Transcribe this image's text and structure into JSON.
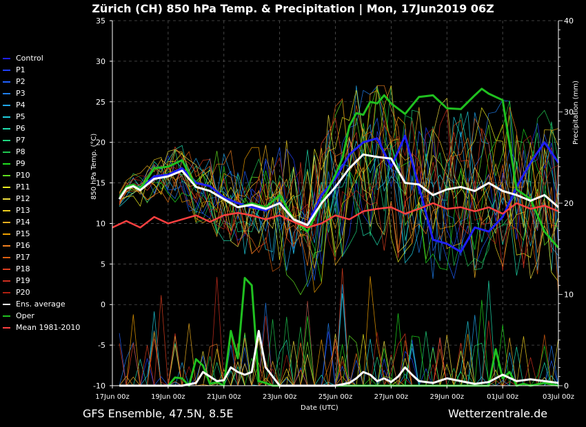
{
  "title": "Zürich  (CH)  850 hPa Temp. & Precipitation | Mon, 17Jun2019 06Z",
  "footer_left": "GFS Ensemble, 47.5N, 8.5E",
  "footer_right": "Wetterzentrale.de",
  "chart_data": {
    "type": "line",
    "xlabel": "Date (UTC)",
    "ylabel_left": "850 hPa Temp. (°C)",
    "ylabel_right": "Precipitation (mm)",
    "xticks": [
      "17Jun 00z",
      "19Jun 00z",
      "21Jun 00z",
      "23Jun 00z",
      "25Jun 00z",
      "27Jun 00z",
      "29Jun 00z",
      "01Jul 00z",
      "03Jul 00z"
    ],
    "x_days_range": [
      0,
      16
    ],
    "ylim_left": [
      -10,
      35
    ],
    "yticks_left": [
      -10,
      -5,
      0,
      5,
      10,
      15,
      20,
      25,
      30,
      35
    ],
    "ylim_right": [
      0,
      40
    ],
    "yticks_right": [
      0,
      10,
      20,
      30,
      40
    ],
    "grid": true,
    "legend_position": "left",
    "legend": [
      {
        "name": "Control",
        "color": "#2020ff"
      },
      {
        "name": "P1",
        "color": "#2040ff"
      },
      {
        "name": "P2",
        "color": "#2060ff"
      },
      {
        "name": "P3",
        "color": "#2080f0"
      },
      {
        "name": "P4",
        "color": "#20a8f0"
      },
      {
        "name": "P5",
        "color": "#20d0e0"
      },
      {
        "name": "P6",
        "color": "#20e0b0"
      },
      {
        "name": "P7",
        "color": "#20d880"
      },
      {
        "name": "P8",
        "color": "#20c850"
      },
      {
        "name": "P9",
        "color": "#20e020"
      },
      {
        "name": "P10",
        "color": "#60e020"
      },
      {
        "name": "P11",
        "color": "#f0f020"
      },
      {
        "name": "P12",
        "color": "#f0e040"
      },
      {
        "name": "P13",
        "color": "#f0d020"
      },
      {
        "name": "P14",
        "color": "#f0b020"
      },
      {
        "name": "P15",
        "color": "#f0a000"
      },
      {
        "name": "P16",
        "color": "#f08020"
      },
      {
        "name": "P17",
        "color": "#e06010"
      },
      {
        "name": "P18",
        "color": "#e04020"
      },
      {
        "name": "P19",
        "color": "#d03020"
      },
      {
        "name": "P20",
        "color": "#b02010"
      },
      {
        "name": "Ens. average",
        "color": "#ffffff"
      },
      {
        "name": "Oper",
        "color": "#20c020"
      },
      {
        "name": "Mean 1981-2010",
        "color": "#ff4040"
      }
    ],
    "series_temp": [
      {
        "name": "Control",
        "color": "#2020ff",
        "width": 3,
        "x": [
          0.25,
          0.5,
          0.75,
          1,
          1.5,
          2,
          2.5,
          3,
          3.5,
          4,
          4.5,
          5,
          5.5,
          6,
          6.5,
          7,
          7.5,
          8,
          8.5,
          9,
          9.5,
          10,
          10.5,
          11,
          11.5,
          12,
          12.5,
          13,
          13.5,
          14,
          14.5,
          15,
          15.5,
          16
        ],
        "y": [
          13,
          14.5,
          14.8,
          14.2,
          15.8,
          16,
          16.8,
          15,
          14.6,
          13.2,
          12.5,
          12,
          11.6,
          12.6,
          10.5,
          9.8,
          13.5,
          15.5,
          18.5,
          20,
          20.5,
          17,
          20.8,
          14.5,
          8,
          7.5,
          6.5,
          9.5,
          9,
          10.8,
          14.5,
          17.5,
          20,
          17.5
        ]
      },
      {
        "name": "Oper",
        "color": "#20c020",
        "width": 3,
        "x": [
          0.25,
          0.5,
          0.75,
          1,
          1.5,
          2,
          2.5,
          3,
          3.5,
          4,
          4.5,
          5,
          5.5,
          6,
          6.5,
          7,
          7.5,
          8,
          8.25,
          8.5,
          8.75,
          9,
          9.25,
          9.5,
          9.75,
          10,
          10.5,
          11,
          11.5,
          12,
          12.5,
          13,
          13.25,
          13.5,
          14,
          14.5,
          15,
          15.5,
          16
        ],
        "y": [
          13,
          14.5,
          14.8,
          14.2,
          16.8,
          17,
          17.8,
          14.5,
          14,
          13,
          12,
          12.5,
          12,
          13.5,
          10.5,
          9,
          12.5,
          16,
          18,
          22,
          23.6,
          23.4,
          25,
          24.8,
          25.8,
          24.8,
          23.5,
          25.6,
          25.8,
          24.2,
          24.1,
          25.8,
          26.6,
          26,
          25.2,
          14.2,
          13,
          9,
          7
        ]
      },
      {
        "name": "Ens. average",
        "color": "#ffffff",
        "width": 3,
        "x": [
          0.25,
          0.5,
          0.75,
          1,
          1.5,
          2,
          2.5,
          3,
          3.5,
          4,
          4.5,
          5,
          5.5,
          6,
          6.5,
          7,
          7.5,
          8,
          8.5,
          9,
          9.5,
          10,
          10.5,
          11,
          11.5,
          12,
          12.5,
          13,
          13.5,
          14,
          14.5,
          15,
          15.5,
          16
        ],
        "y": [
          13,
          14.3,
          14.6,
          14.1,
          15.5,
          15.8,
          16.5,
          14.5,
          14,
          13,
          12,
          12.3,
          11.8,
          12.5,
          10.5,
          9.8,
          12.5,
          14.5,
          16.8,
          18.5,
          18.2,
          18,
          15,
          14.8,
          13.5,
          14.2,
          14.5,
          14,
          15,
          14,
          13.5,
          12.8,
          13.5,
          12
        ]
      },
      {
        "name": "Mean 1981-2010",
        "color": "#ff4040",
        "width": 2.5,
        "x": [
          0,
          0.5,
          1,
          1.5,
          2,
          2.5,
          3,
          3.5,
          4,
          4.5,
          5,
          5.5,
          6,
          6.5,
          7,
          7.5,
          8,
          8.5,
          9,
          9.5,
          10,
          10.5,
          11,
          11.5,
          12,
          12.5,
          13,
          13.5,
          14,
          14.5,
          15,
          15.5,
          16
        ],
        "y": [
          9.5,
          10.3,
          9.5,
          10.8,
          10,
          10.5,
          11,
          10.2,
          11,
          11.3,
          11,
          10.5,
          11,
          10.2,
          9.5,
          10,
          11,
          10.5,
          11.5,
          11.8,
          12,
          11.2,
          11.8,
          12.5,
          11.8,
          12,
          11.5,
          12,
          11.2,
          12.5,
          11.8,
          12.2,
          11.5
        ]
      }
    ],
    "series_precip": [
      {
        "name": "Oper",
        "color": "#20c020",
        "width": 3,
        "x": [
          0.25,
          1,
          2,
          2.25,
          2.5,
          2.75,
          3,
          3.25,
          3.5,
          3.75,
          4,
          4.25,
          4.5,
          4.75,
          5,
          5.25,
          5.5,
          5.75,
          6,
          6.5,
          7,
          8,
          10,
          12,
          13,
          13.5,
          13.75,
          14,
          14.25,
          14.5,
          14.75,
          15,
          15.5,
          16
        ],
        "y": [
          0,
          0,
          0,
          0.9,
          0.8,
          0,
          2.9,
          2.2,
          0.2,
          0.4,
          0,
          6,
          3,
          11.8,
          11,
          0.5,
          0.3,
          0,
          0,
          0,
          0,
          0,
          0,
          0,
          0,
          0,
          4,
          0.8,
          1.5,
          0,
          0.2,
          0,
          0.3,
          0
        ]
      },
      {
        "name": "Ens. average",
        "color": "#ffffff",
        "width": 3,
        "x": [
          0.25,
          1,
          2,
          2.5,
          3,
          3.25,
          3.5,
          3.75,
          4,
          4.25,
          4.5,
          4.75,
          5,
          5.25,
          5.5,
          6,
          7,
          8,
          8.5,
          8.75,
          9,
          9.25,
          9.5,
          9.75,
          10,
          10.25,
          10.5,
          10.75,
          11,
          11.5,
          12,
          12.5,
          13,
          13.5,
          14,
          14.5,
          15,
          15.5,
          16
        ],
        "y": [
          0,
          0,
          0,
          0,
          0.3,
          1.5,
          1,
          0.5,
          0.6,
          2,
          1.5,
          1.2,
          1.5,
          6,
          2,
          0,
          0,
          0,
          0.3,
          0.8,
          1.5,
          1.2,
          0.5,
          0.8,
          0.4,
          1,
          2,
          1.2,
          0.5,
          0.3,
          0.8,
          0.5,
          0.2,
          0.4,
          1.2,
          0.5,
          0.7,
          0.5,
          0.3
        ]
      }
    ]
  }
}
